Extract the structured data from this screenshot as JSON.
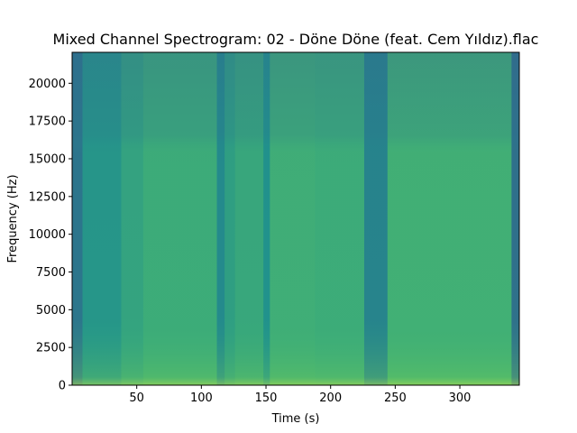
{
  "chart_data": {
    "type": "heatmap",
    "title": "Mixed Channel Spectrogram: 02 - Döne Döne (feat. Cem Yıldız).flac",
    "xlabel": "Time (s)",
    "ylabel": "Frequency (Hz)",
    "xlim": [
      0,
      346
    ],
    "ylim": [
      0,
      22050
    ],
    "x_ticks": [
      50,
      100,
      150,
      200,
      250,
      300
    ],
    "y_ticks": [
      0,
      2500,
      5000,
      7500,
      10000,
      12500,
      15000,
      17500,
      20000
    ],
    "colormap": "viridis",
    "time_segments": [
      {
        "start": 0,
        "end": 8,
        "level": 0.38
      },
      {
        "start": 8,
        "end": 38,
        "level": 0.52
      },
      {
        "start": 38,
        "end": 55,
        "level": 0.58
      },
      {
        "start": 55,
        "end": 112,
        "level": 0.62
      },
      {
        "start": 112,
        "end": 118,
        "level": 0.47
      },
      {
        "start": 118,
        "end": 126,
        "level": 0.56
      },
      {
        "start": 126,
        "end": 148,
        "level": 0.6
      },
      {
        "start": 148,
        "end": 153,
        "level": 0.5
      },
      {
        "start": 153,
        "end": 188,
        "level": 0.63
      },
      {
        "start": 188,
        "end": 226,
        "level": 0.62
      },
      {
        "start": 226,
        "end": 244,
        "level": 0.44
      },
      {
        "start": 244,
        "end": 340,
        "level": 0.64
      },
      {
        "start": 340,
        "end": 346,
        "level": 0.36
      }
    ]
  }
}
